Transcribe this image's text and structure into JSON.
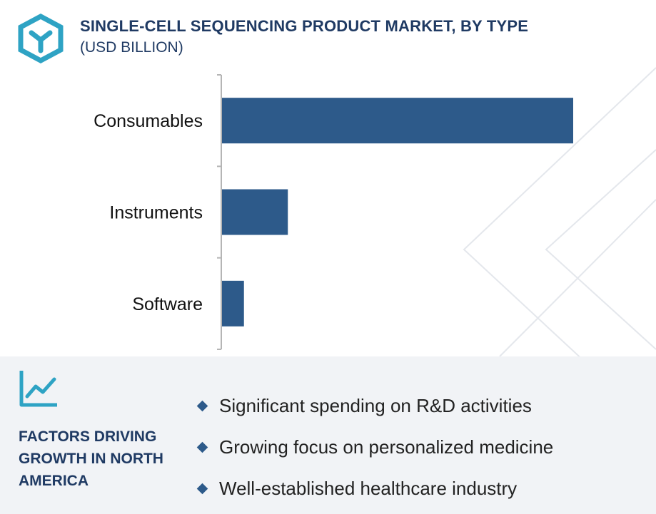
{
  "header": {
    "title": "SINGLE-CELL SEQUENCING PRODUCT MARKET, BY TYPE",
    "subtitle": "(USD BILLION)"
  },
  "colors": {
    "brand": "#2ea3c4",
    "bar": "#2d5a8a",
    "heading": "#1f3a63",
    "footer_bg": "#f1f3f6"
  },
  "icons": {
    "logo": "hexagon-y-logo",
    "factors": "line-chart-trend-icon",
    "bullet": "diamond-bullet-icon"
  },
  "chart_data": {
    "type": "bar",
    "orientation": "horizontal",
    "categories": [
      "Consumables",
      "Instruments",
      "Software"
    ],
    "values": [
      8.0,
      1.5,
      0.5
    ],
    "xlim": [
      0,
      8.0
    ],
    "axis_ticks_shown": false,
    "grid": false
  },
  "factors": {
    "heading": "FACTORS DRIVING GROWTH IN NORTH AMERICA",
    "items": [
      "Significant spending on R&D activities",
      "Growing focus on personalized medicine",
      "Well-established healthcare industry"
    ]
  }
}
